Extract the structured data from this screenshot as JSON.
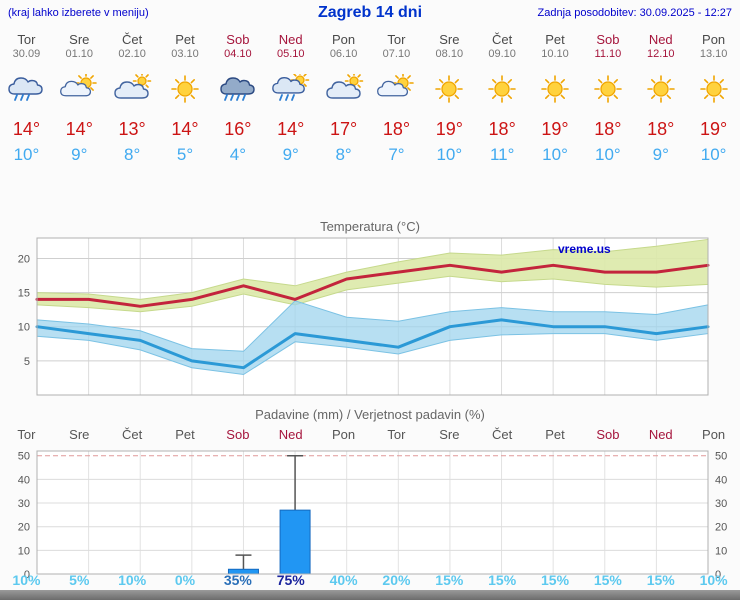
{
  "header": {
    "left": "(kraj lahko izberete v meniju)",
    "title": "Zagreb 14 dni",
    "updated": "Zadnja posodobitev: 30.09.2025 - 12:27"
  },
  "days": [
    {
      "name": "Tor",
      "date": "30.09",
      "weekend": false,
      "icon": "rain",
      "tmax": "14°",
      "tmin": "10°"
    },
    {
      "name": "Sre",
      "date": "01.10",
      "weekend": false,
      "icon": "partly-cloudy",
      "tmax": "14°",
      "tmin": "9°"
    },
    {
      "name": "Čet",
      "date": "02.10",
      "weekend": false,
      "icon": "mostly-cloudy",
      "tmax": "13°",
      "tmin": "8°"
    },
    {
      "name": "Pet",
      "date": "03.10",
      "weekend": false,
      "icon": "sunny",
      "tmax": "14°",
      "tmin": "5°"
    },
    {
      "name": "Sob",
      "date": "04.10",
      "weekend": true,
      "icon": "heavy-rain",
      "tmax": "16°",
      "tmin": "4°"
    },
    {
      "name": "Ned",
      "date": "05.10",
      "weekend": true,
      "icon": "sun-rain",
      "tmax": "14°",
      "tmin": "9°"
    },
    {
      "name": "Pon",
      "date": "06.10",
      "weekend": false,
      "icon": "mostly-cloudy",
      "tmax": "17°",
      "tmin": "8°"
    },
    {
      "name": "Tor",
      "date": "07.10",
      "weekend": false,
      "icon": "partly-cloudy",
      "tmax": "18°",
      "tmin": "7°"
    },
    {
      "name": "Sre",
      "date": "08.10",
      "weekend": false,
      "icon": "sunny",
      "tmax": "19°",
      "tmin": "10°"
    },
    {
      "name": "Čet",
      "date": "09.10",
      "weekend": false,
      "icon": "sunny",
      "tmax": "18°",
      "tmin": "11°"
    },
    {
      "name": "Pet",
      "date": "10.10",
      "weekend": false,
      "icon": "sunny",
      "tmax": "19°",
      "tmin": "10°"
    },
    {
      "name": "Sob",
      "date": "11.10",
      "weekend": true,
      "icon": "sunny",
      "tmax": "18°",
      "tmin": "10°"
    },
    {
      "name": "Ned",
      "date": "12.10",
      "weekend": true,
      "icon": "sunny",
      "tmax": "18°",
      "tmin": "9°"
    },
    {
      "name": "Pon",
      "date": "13.10",
      "weekend": false,
      "icon": "sunny",
      "tmax": "19°",
      "tmin": "10°"
    }
  ],
  "chart_data": [
    {
      "type": "line",
      "title": "Temperatura (°C)",
      "watermark": "vreme.us",
      "x_categories": [
        "Tor 30.09",
        "Sre 01.10",
        "Čet 02.10",
        "Pet 03.10",
        "Sob 04.10",
        "Ned 05.10",
        "Pon 06.10",
        "Tor 07.10",
        "Sre 08.10",
        "Čet 09.10",
        "Pet 10.10",
        "Sob 11.10",
        "Ned 12.10",
        "Pon 13.10"
      ],
      "ylim": [
        0,
        23
      ],
      "yticks": [
        5,
        10,
        15,
        20
      ],
      "grid": true,
      "legend": "none",
      "series": [
        {
          "name": "max-temperature",
          "color": "#c3243c",
          "values": [
            14,
            14,
            13,
            14,
            16,
            14,
            17,
            18,
            19,
            18,
            19,
            18,
            18,
            19
          ]
        },
        {
          "name": "min-temperature",
          "color": "#2b99d6",
          "values": [
            10,
            9,
            8,
            5,
            4,
            9,
            8,
            7,
            10,
            11,
            10,
            10,
            9,
            10
          ]
        }
      ],
      "bands": [
        {
          "name": "max-temperature-range",
          "color": "#dce9a8",
          "opacity": 0.9,
          "edge": "#c6d98c",
          "upper": [
            15,
            14.8,
            14,
            15,
            17,
            16,
            18,
            19.5,
            20.8,
            20.5,
            21.3,
            21,
            21.8,
            22.8
          ],
          "lower": [
            13.2,
            12.8,
            12.2,
            13,
            14.8,
            13.2,
            15.4,
            16.4,
            17.4,
            16.6,
            17,
            16.2,
            15.8,
            16.2
          ]
        },
        {
          "name": "min-temperature-range",
          "color": "#9fd4ee",
          "opacity": 0.75,
          "edge": "#7bc2e4",
          "upper": [
            11,
            10.4,
            9.4,
            6.8,
            6.4,
            13.8,
            11.4,
            10.8,
            12.2,
            12.8,
            12.2,
            12.2,
            11.8,
            13.2
          ],
          "lower": [
            8.6,
            8,
            6.6,
            4,
            3,
            7.8,
            7,
            6,
            8,
            8.8,
            9,
            9,
            8,
            9
          ]
        }
      ]
    },
    {
      "type": "bar",
      "title": "Padavine (mm) / Verjetnost padavin (%)",
      "categories": [
        "Tor",
        "Sre",
        "Čet",
        "Pet",
        "Sob",
        "Ned",
        "Pon",
        "Tor",
        "Sre",
        "Čet",
        "Pet",
        "Sob",
        "Ned",
        "Pon"
      ],
      "values": [
        0,
        0,
        0,
        0,
        2,
        27,
        0,
        0,
        0,
        0,
        0,
        0,
        0,
        0
      ],
      "whisker_max": [
        0,
        0,
        0,
        0,
        8,
        50,
        0,
        0,
        0,
        0,
        0,
        0,
        0,
        0
      ],
      "probabilities": [
        10,
        5,
        10,
        0,
        35,
        75,
        40,
        20,
        15,
        15,
        15,
        15,
        15,
        10
      ],
      "prob_labels": [
        "10%",
        "5%",
        "10%",
        "0%",
        "35%",
        "75%",
        "40%",
        "20%",
        "15%",
        "15%",
        "15%",
        "15%",
        "15%",
        "10%"
      ],
      "prob_emphasis": [
        "low",
        "low",
        "low",
        "low",
        "mid",
        "high",
        "low",
        "low",
        "low",
        "low",
        "low",
        "low",
        "low",
        "low"
      ],
      "ylim": [
        0,
        52
      ],
      "yticks": [
        0,
        10,
        20,
        30,
        40,
        50
      ],
      "bar_color": "#2196f3",
      "grid": true
    }
  ]
}
